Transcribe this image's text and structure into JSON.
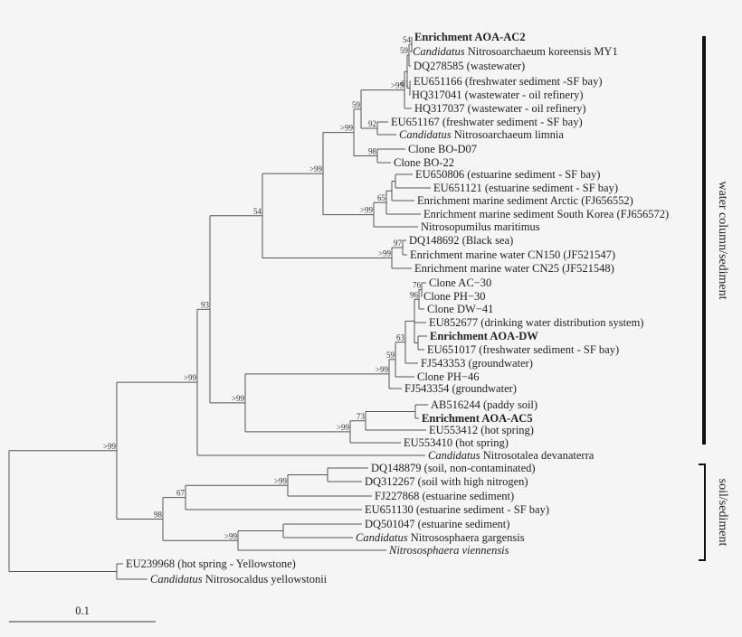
{
  "leaves": [
    {
      "text": "Enrichment AOA-AC2",
      "bold": true
    },
    {
      "prefix": "Candidatus",
      "text": " Nitrosoarchaeum koreensis MY1"
    },
    {
      "text": "DQ278585 (wastewater)"
    },
    {
      "text": "EU651166 (freshwater sediment -SF bay)"
    },
    {
      "text": "HQ317041 (wastewater - oil refinery)"
    },
    {
      "text": "HQ317037 (wastewater - oil refinery)"
    },
    {
      "text": "EU651167 (freshwater sediment - SF bay)"
    },
    {
      "prefix": "Candidatus",
      "text": " Nitrosoarchaeum limnia"
    },
    {
      "text": "Clone BO-D07"
    },
    {
      "text": "Clone BO-22"
    },
    {
      "text": "EU650806 (estuarine sediment - SF bay)"
    },
    {
      "text": "EU651121 (estuarine sediment - SF bay)"
    },
    {
      "text": "Enrichment marine sediment Arctic (FJ656552)"
    },
    {
      "text": "Enrichment marine sediment South Korea (FJ656572)"
    },
    {
      "text": "Nitrosopumilus maritimus"
    },
    {
      "text": "DQ148692 (Black sea)"
    },
    {
      "text": "Enrichment marine water CN150 (JF521547)"
    },
    {
      "text": "Enrichment marine water CN25 (JF521548)"
    },
    {
      "text": "Clone AC−30"
    },
    {
      "text": "Clone PH−30"
    },
    {
      "text": "Clone DW−41"
    },
    {
      "text": "EU852677 (drinking water distribution system)"
    },
    {
      "text": "Enrichment AOA-DW",
      "bold": true
    },
    {
      "text": "EU651017 (freshwater sediment - SF bay)"
    },
    {
      "text": "FJ543353 (groundwater)"
    },
    {
      "text": "Clone PH−46"
    },
    {
      "text": "FJ543354 (groundwater)"
    },
    {
      "text": "AB516244 (paddy soil)"
    },
    {
      "text": "Enrichment AOA-AC5",
      "bold": true
    },
    {
      "text": "EU553412 (hot spring)"
    },
    {
      "text": "EU553410 (hot spring)"
    },
    {
      "prefix": "Candidatus",
      "text": " Nitrosotalea devanaterra"
    },
    {
      "text": "DQ148879 (soil, non-contaminated)"
    },
    {
      "text": "DQ312267 (soil with high nitrogen)"
    },
    {
      "text": "FJ227868 (estuarine sediment)"
    },
    {
      "text": "EU651130 (estuarine sediment - SF bay)"
    },
    {
      "text": "DQ501047 (estuarine sediment)"
    },
    {
      "prefix": "Candidatus",
      "text": " Nitrososphaera gargensis"
    },
    {
      "text": "Nitrososphaera viennensis",
      "italic": true
    },
    {
      "text": "EU239968 (hot spring - Yellowstone)"
    },
    {
      "prefix": "Candidatus",
      "text": " Nitrosocaldus yellowstonii"
    }
  ],
  "support": [
    ">99",
    ">99",
    "59",
    ">99",
    "59",
    "54",
    "61",
    "92",
    "98",
    ">99",
    "65",
    "54",
    ">99",
    "97",
    ">99",
    ">99",
    "59",
    "63",
    "96",
    "76",
    ">99",
    "73",
    "93",
    ">99",
    "98",
    "67",
    ">99",
    ">99",
    ">99"
  ],
  "groups": [
    {
      "label": "water column/sediment"
    },
    {
      "label": "soil/sediment"
    }
  ],
  "scale": {
    "label": "0.1"
  }
}
